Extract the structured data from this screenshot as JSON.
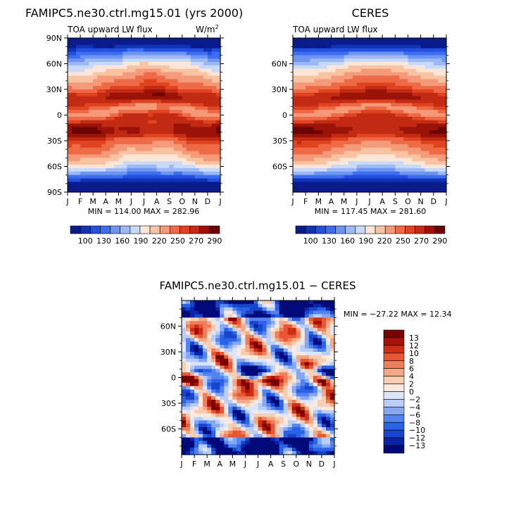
{
  "colors": {
    "model_levels": [
      "#0a1c8c",
      "#1133b8",
      "#2350e0",
      "#3e6ef0",
      "#6e94f2",
      "#9cb8f5",
      "#c8daf8",
      "#fbe6d7",
      "#f8c3a3",
      "#f49a78",
      "#ee6a46",
      "#e0431f",
      "#c22a14",
      "#9b1209",
      "#6b0404"
    ],
    "diff_levels": [
      "#020a7a",
      "#0a23a8",
      "#1745cc",
      "#2a62e8",
      "#5283ef",
      "#86a8f3",
      "#b9cdf7",
      "#dbe6fb",
      "#fbeadd",
      "#f8cdb0",
      "#f4a886",
      "#ee7f5c",
      "#e85634",
      "#d02e14",
      "#a81206",
      "#7a0202"
    ]
  },
  "chart_data": [
    {
      "id": "model",
      "type": "heatmap",
      "title": "FAMIPC5.ne30.ctrl.mg15.01 (yrs 2000)",
      "subtitle": "TOA upward LW flux",
      "units_prefix": "W/m",
      "units_exp": "2",
      "x_ticks": [
        "J",
        "F",
        "M",
        "A",
        "M",
        "J",
        "J",
        "A",
        "S",
        "O",
        "N",
        "D",
        "J"
      ],
      "y_ticks": [
        "90N",
        "60N",
        "30N",
        "0",
        "30S",
        "60S",
        "90S"
      ],
      "y_range": [
        90,
        -90
      ],
      "min_max_label": "MIN = 114.00 MAX = 282.96",
      "colorbar_labels": [
        "100",
        "130",
        "160",
        "190",
        "220",
        "250",
        "270",
        "290"
      ],
      "colorbar_levels": [
        100,
        115,
        130,
        145,
        160,
        175,
        190,
        205,
        220,
        235,
        250,
        260,
        270,
        280,
        290
      ],
      "variant": 0
    },
    {
      "id": "ceres",
      "type": "heatmap",
      "title": "CERES",
      "subtitle": "TOA upward LW flux",
      "x_ticks": [
        "J",
        "F",
        "M",
        "A",
        "M",
        "J",
        "J",
        "A",
        "S",
        "O",
        "N",
        "D",
        "J"
      ],
      "y_ticks": [
        "60N",
        "30N",
        "0",
        "30S",
        "60S"
      ],
      "y_range": [
        90,
        -90
      ],
      "min_max_label": "MIN = 117.45 MAX = 281.60",
      "colorbar_labels": [
        "100",
        "130",
        "160",
        "190",
        "220",
        "250",
        "270",
        "290"
      ],
      "colorbar_levels": [
        100,
        115,
        130,
        145,
        160,
        175,
        190,
        205,
        220,
        235,
        250,
        260,
        270,
        280,
        290
      ],
      "variant": 1
    },
    {
      "id": "diff",
      "type": "heatmap",
      "title": "FAMIPC5.ne30.ctrl.mg15.01 − CERES",
      "x_ticks": [
        "J",
        "F",
        "M",
        "A",
        "M",
        "J",
        "J",
        "A",
        "S",
        "O",
        "N",
        "D",
        "J"
      ],
      "y_ticks": [
        "60N",
        "30N",
        "0",
        "30S",
        "60S"
      ],
      "y_range": [
        90,
        -90
      ],
      "min_max_label": "MIN = −27.22 MAX = 12.34",
      "colorbar_labels": [
        "13",
        "12",
        "10",
        "8",
        "6",
        "4",
        "2",
        "0",
        "−2",
        "−4",
        "−6",
        "−8",
        "−10",
        "−12",
        "−13"
      ],
      "colorbar_levels": [
        -13,
        -12,
        -10,
        -8,
        -6,
        -4,
        -2,
        0,
        2,
        4,
        6,
        8,
        10,
        12,
        13
      ]
    }
  ]
}
